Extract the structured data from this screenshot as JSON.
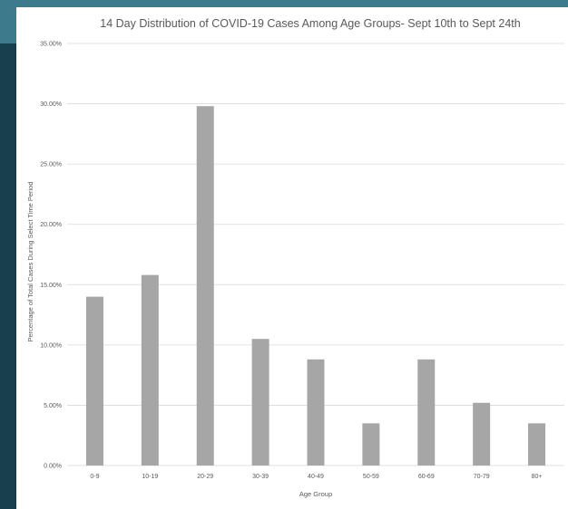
{
  "colors": {
    "background": "#1e4a5a",
    "accent": "#3d7a8c",
    "panel": "#ffffff",
    "bar": "#a6a6a6",
    "grid": "#d9d9d9",
    "text": "#595959"
  },
  "chart_data": {
    "type": "bar",
    "title": "14 Day Distribution of COVID-19 Cases Among Age Groups- Sept 10th to Sept 24th",
    "xlabel": "Age Group",
    "ylabel": "Percentage of Total Cases During Select Time Period",
    "categories": [
      "0-9",
      "10-19",
      "20-29",
      "30-39",
      "40-49",
      "50-59",
      "60-69",
      "70-79",
      "80+"
    ],
    "values": [
      14.0,
      15.8,
      29.8,
      10.5,
      8.8,
      3.5,
      8.8,
      5.2,
      3.5
    ],
    "ylim": [
      0,
      35
    ],
    "yticks": [
      0,
      5,
      10,
      15,
      20,
      25,
      30,
      35
    ],
    "ytick_labels": [
      "0.00%",
      "5.00%",
      "10.00%",
      "15.00%",
      "20.00%",
      "25.00%",
      "30.00%",
      "35.00%"
    ],
    "grid": true,
    "legend": false
  }
}
